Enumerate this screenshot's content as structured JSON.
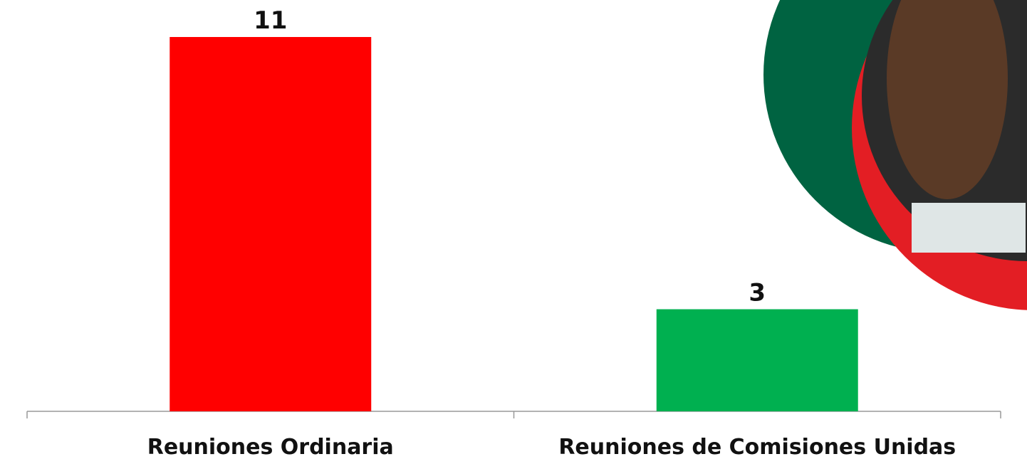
{
  "chart_data": {
    "type": "bar",
    "categories": [
      "Reuniones Ordinaria",
      "Reuniones de Comisiones Unidas"
    ],
    "values": [
      11,
      3
    ],
    "colors": [
      "#ff0000",
      "#00b050"
    ]
  }
}
